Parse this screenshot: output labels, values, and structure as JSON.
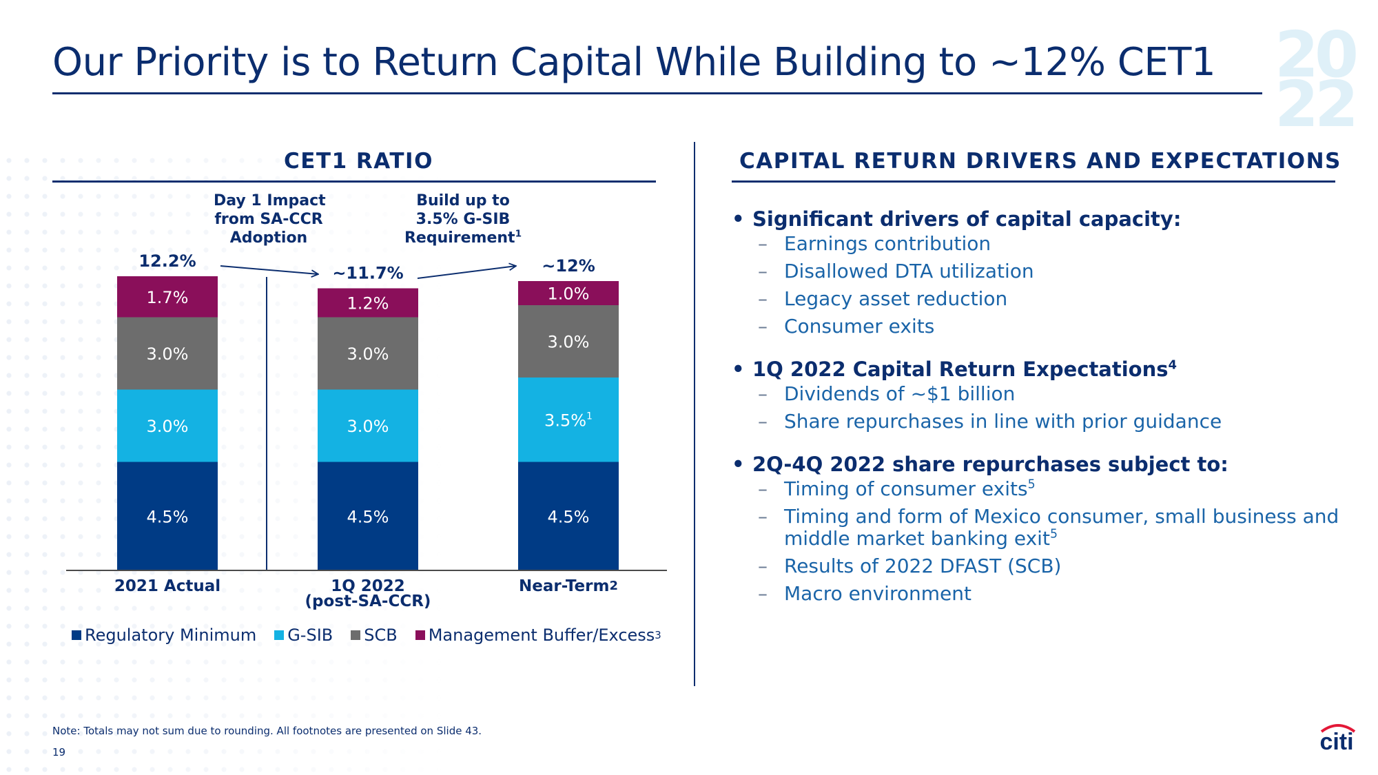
{
  "title": "Our Priority is to Return Capital While Building to ~12% CET1",
  "year_digits": [
    "2",
    "0",
    "2",
    "2"
  ],
  "left_section_title": "CET1 RATIO",
  "right_section_title": "CAPITAL RETURN DRIVERS AND EXPECTATIONS",
  "annotations": {
    "day1": [
      "Day 1 Impact",
      "from SA-CCR",
      "Adoption"
    ],
    "build_main": [
      "Build up to",
      "3.5% G-SIB",
      "Requirement"
    ],
    "build_sup": "1"
  },
  "chart_data": {
    "type": "bar",
    "stacked": true,
    "categories": [
      "2021 Actual",
      "1Q 2022\n(post-SA-CCR)",
      "Near-Term"
    ],
    "category_superscripts": [
      "",
      "",
      "2"
    ],
    "totals": [
      "12.2%",
      "~11.7%",
      "~12%"
    ],
    "series": [
      {
        "name": "Regulatory Minimum",
        "values": [
          4.5,
          4.5,
          4.5
        ],
        "labels": [
          "4.5%",
          "4.5%",
          "4.5%"
        ],
        "color": "#003b85"
      },
      {
        "name": "G-SIB",
        "values": [
          3.0,
          3.0,
          3.5
        ],
        "labels": [
          "3.0%",
          "3.0%",
          "3.5%"
        ],
        "label_superscripts": [
          "",
          "",
          "1"
        ],
        "color": "#14b2e3"
      },
      {
        "name": "SCB",
        "values": [
          3.0,
          3.0,
          3.0
        ],
        "labels": [
          "3.0%",
          "3.0%",
          "3.0%"
        ],
        "color": "#6d6d6d"
      },
      {
        "name": "Management Buffer/Excess",
        "name_superscript": "3",
        "values": [
          1.7,
          1.2,
          1.0
        ],
        "labels": [
          "1.7%",
          "1.2%",
          "1.0%"
        ],
        "color": "#8a0f5a"
      }
    ],
    "ylim": [
      0,
      12.2
    ],
    "grid": false,
    "legend_position": "bottom"
  },
  "bullets": [
    {
      "head": "Significant drivers of capital capacity:",
      "head_sup": "",
      "subs": [
        {
          "text": "Earnings contribution",
          "sup": ""
        },
        {
          "text": "Disallowed DTA utilization",
          "sup": ""
        },
        {
          "text": "Legacy asset reduction",
          "sup": ""
        },
        {
          "text": "Consumer exits",
          "sup": ""
        }
      ]
    },
    {
      "head": "1Q 2022 Capital Return Expectations",
      "head_sup": "4",
      "subs": [
        {
          "text": "Dividends of ~$1 billion",
          "sup": ""
        },
        {
          "text": "Share repurchases in line with prior guidance",
          "sup": ""
        }
      ]
    },
    {
      "head": "2Q-4Q 2022 share repurchases subject to:",
      "head_sup": "",
      "subs": [
        {
          "text": "Timing of consumer exits",
          "sup": "5"
        },
        {
          "text": "Timing and form of Mexico consumer, small business and middle market banking exit",
          "sup": "5"
        },
        {
          "text": "Results of 2022 DFAST (SCB)",
          "sup": ""
        },
        {
          "text": "Macro environment",
          "sup": ""
        }
      ]
    }
  ],
  "bullet_symbol": "•",
  "dash_symbol": "–",
  "note": "Note: Totals may not sum due to rounding. All footnotes are presented on Slide 43.",
  "page_number": "19",
  "logo_text": "citi",
  "colors": {
    "navy": "#0b2d6e",
    "accent_blue": "#1a64a8",
    "logo_red": "#e31837"
  }
}
